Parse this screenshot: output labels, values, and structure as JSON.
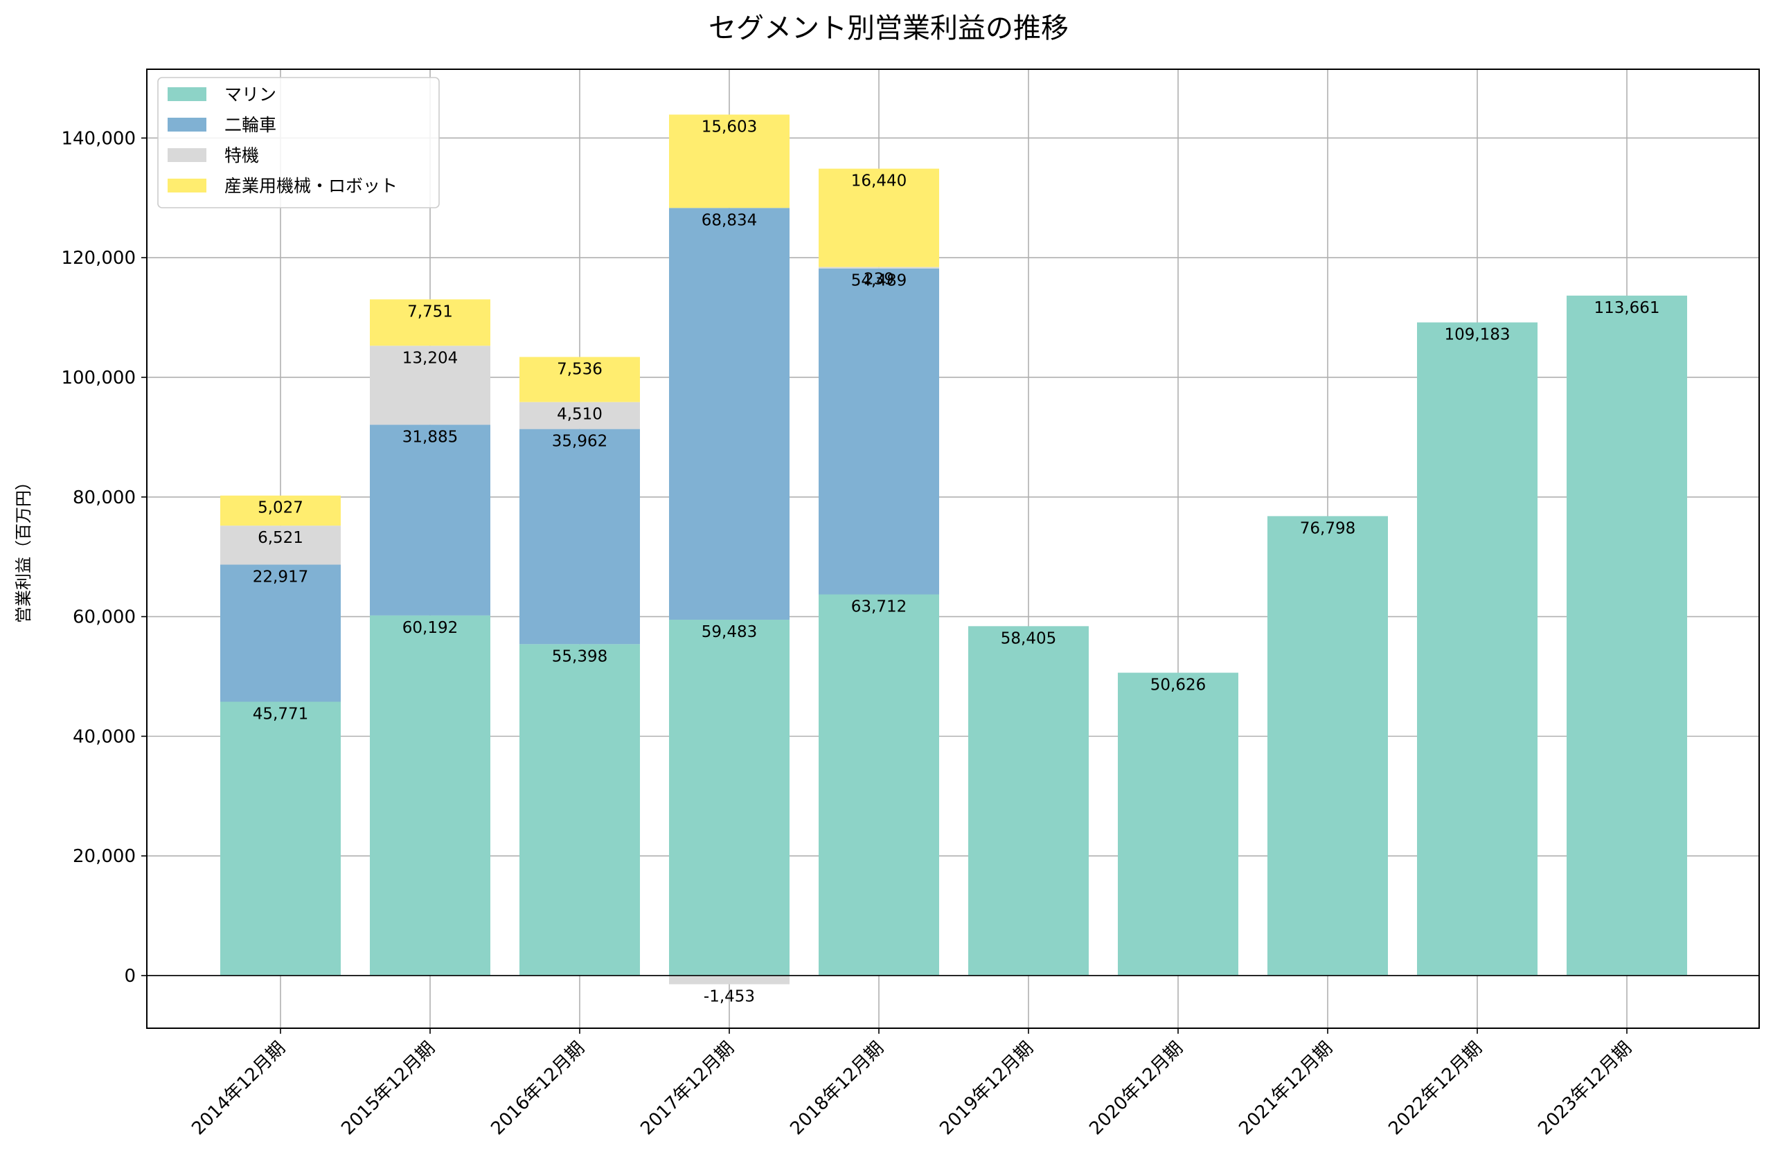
{
  "chart_data": {
    "type": "bar",
    "stacked": true,
    "title": "セグメント別営業利益の推移",
    "xlabel": "",
    "ylabel": "営業利益（百万円）",
    "categories": [
      "2014年12月期",
      "2015年12月期",
      "2016年12月期",
      "2017年12月期",
      "2018年12月期",
      "2019年12月期",
      "2020年12月期",
      "2021年12月期",
      "2022年12月期",
      "2023年12月期"
    ],
    "series": [
      {
        "name": "マリン",
        "color": "#8dd3c7",
        "values": [
          45771,
          60192,
          55398,
          59483,
          63712,
          58405,
          50626,
          76798,
          109183,
          113661
        ]
      },
      {
        "name": "二輪車",
        "color": "#80b1d3",
        "values": [
          22917,
          31885,
          35962,
          68834,
          54489,
          null,
          null,
          null,
          null,
          null
        ]
      },
      {
        "name": "特機",
        "color": "#d9d9d9",
        "values": [
          6521,
          13204,
          4510,
          -1453,
          239,
          null,
          null,
          null,
          null,
          null
        ]
      },
      {
        "name": "産業用機械・ロボット",
        "color": "#ffed6f",
        "values": [
          5027,
          7751,
          7536,
          15603,
          16440,
          null,
          null,
          null,
          null,
          null
        ]
      }
    ],
    "ylim": [
      -8800,
      151500
    ],
    "yticks": [
      0,
      20000,
      40000,
      60000,
      80000,
      100000,
      120000,
      140000
    ],
    "ytick_labels": [
      "0",
      "20,000",
      "40,000",
      "60,000",
      "80,000",
      "100,000",
      "120,000",
      "140,000"
    ],
    "grid": true,
    "legend_position": "upper-left",
    "colors": {
      "grid": "#b0b0b0",
      "axis": "#000000",
      "background": "#ffffff"
    }
  }
}
